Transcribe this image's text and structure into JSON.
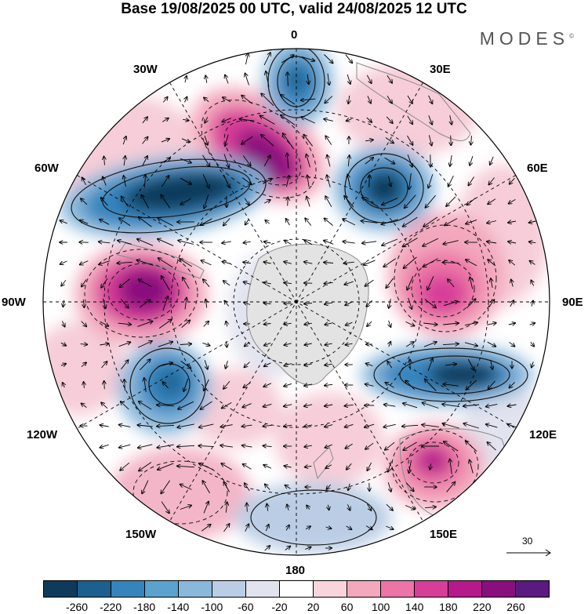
{
  "title": "Base 19/08/2025 00 UTC, valid 24/08/2025 12 UTC",
  "brand": "MODES",
  "brand_mark": "©",
  "longitude_labels": {
    "lon_0": "0",
    "lon_30e": "30E",
    "lon_60e": "60E",
    "lon_90e": "90E",
    "lon_120e": "120E",
    "lon_150e": "150E",
    "lon_180": "180",
    "lon_150w": "150W",
    "lon_120w": "120W",
    "lon_90w": "90W",
    "lon_60w": "60W",
    "lon_30w": "30W"
  },
  "vector_reference": "30",
  "colorbar": {
    "colors": [
      "#0e3b5c",
      "#1d5f8f",
      "#3584bd",
      "#5ba2cf",
      "#8ab8db",
      "#bacde5",
      "#e1e3ef",
      "#ffffff",
      "#f9d4dc",
      "#f3a8bd",
      "#ec74a6",
      "#d73e98",
      "#b5198a",
      "#8a0f7e",
      "#5a1a80"
    ],
    "tick_labels": [
      "-260",
      "-220",
      "-180",
      "-140",
      "-100",
      "-60",
      "-20",
      "20",
      "60",
      "100",
      "140",
      "180",
      "220",
      "260"
    ]
  },
  "colors": {
    "land_outline": "#8a8a8a",
    "antarctica_fill": "#e3e3e3",
    "grid": "#000000",
    "contour": "#1a1a1a"
  }
}
